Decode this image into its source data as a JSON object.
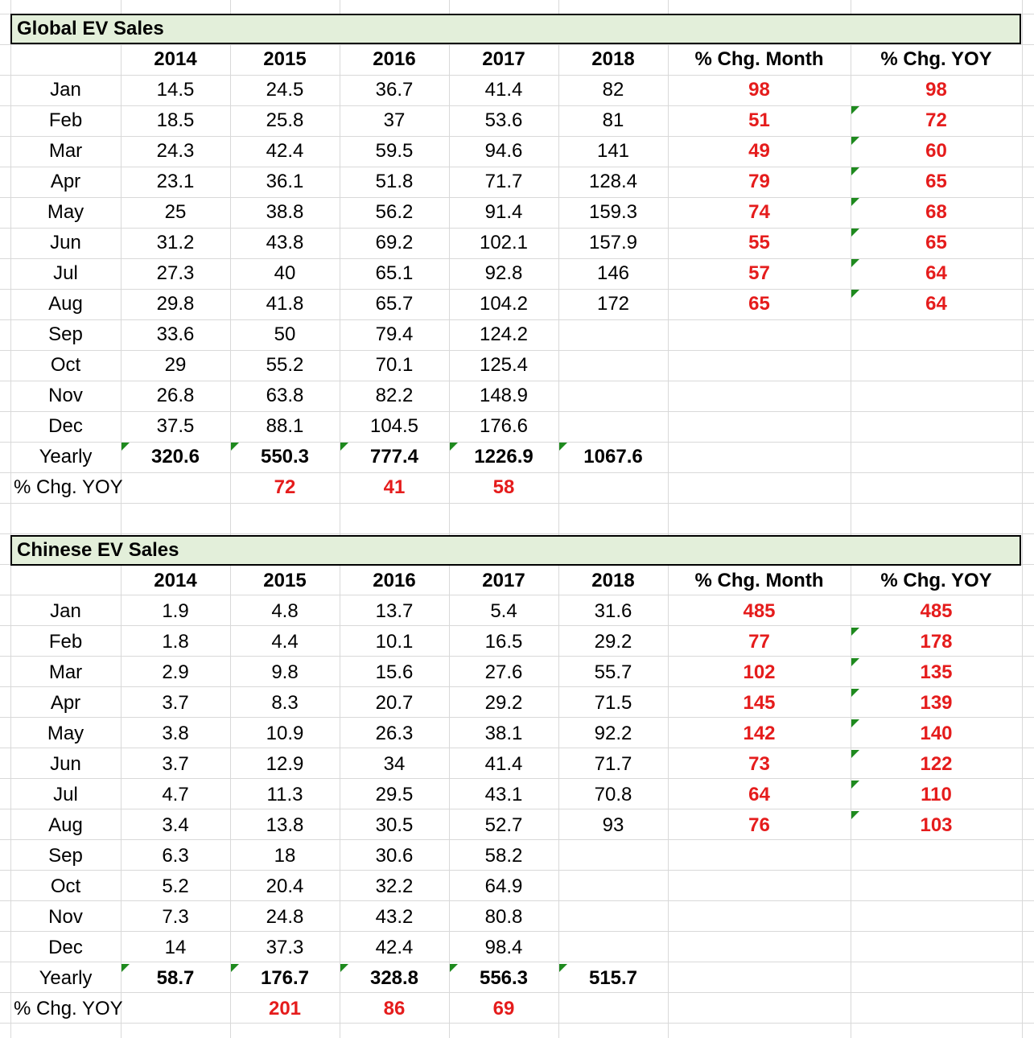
{
  "colors": {
    "header_fill": "#e3efda",
    "negative_red": "#e51c1c",
    "grid": "#d9d9d9",
    "flag_green": "#1e8a1e"
  },
  "tables": [
    {
      "title": "Global EV Sales",
      "headers": [
        "",
        "2014",
        "2015",
        "2016",
        "2017",
        "2018",
        "% Chg. Month",
        "% Chg. YOY"
      ],
      "rows": [
        [
          "Jan",
          "14.5",
          "24.5",
          "36.7",
          "41.4",
          "82",
          "98",
          "98"
        ],
        [
          "Feb",
          "18.5",
          "25.8",
          "37",
          "53.6",
          "81",
          "51",
          "72"
        ],
        [
          "Mar",
          "24.3",
          "42.4",
          "59.5",
          "94.6",
          "141",
          "49",
          "60"
        ],
        [
          "Apr",
          "23.1",
          "36.1",
          "51.8",
          "71.7",
          "128.4",
          "79",
          "65"
        ],
        [
          "May",
          "25",
          "38.8",
          "56.2",
          "91.4",
          "159.3",
          "74",
          "68"
        ],
        [
          "Jun",
          "31.2",
          "43.8",
          "69.2",
          "102.1",
          "157.9",
          "55",
          "65"
        ],
        [
          "Jul",
          "27.3",
          "40",
          "65.1",
          "92.8",
          "146",
          "57",
          "64"
        ],
        [
          "Aug",
          "29.8",
          "41.8",
          "65.7",
          "104.2",
          "172",
          "65",
          "64"
        ],
        [
          "Sep",
          "33.6",
          "50",
          "79.4",
          "124.2",
          "",
          "",
          ""
        ],
        [
          "Oct",
          "29",
          "55.2",
          "70.1",
          "125.4",
          "",
          "",
          ""
        ],
        [
          "Nov",
          "26.8",
          "63.8",
          "82.2",
          "148.9",
          "",
          "",
          ""
        ],
        [
          "Dec",
          "37.5",
          "88.1",
          "104.5",
          "176.6",
          "",
          "",
          ""
        ]
      ],
      "yearly": [
        "Yearly",
        "320.6",
        "550.3",
        "777.4",
        "1226.9",
        "1067.6"
      ],
      "yoy": [
        "% Chg. YOY",
        "",
        "72",
        "41",
        "58",
        ""
      ]
    },
    {
      "title": "Chinese EV Sales",
      "headers": [
        "",
        "2014",
        "2015",
        "2016",
        "2017",
        "2018",
        "% Chg. Month",
        "% Chg. YOY"
      ],
      "rows": [
        [
          "Jan",
          "1.9",
          "4.8",
          "13.7",
          "5.4",
          "31.6",
          "485",
          "485"
        ],
        [
          "Feb",
          "1.8",
          "4.4",
          "10.1",
          "16.5",
          "29.2",
          "77",
          "178"
        ],
        [
          "Mar",
          "2.9",
          "9.8",
          "15.6",
          "27.6",
          "55.7",
          "102",
          "135"
        ],
        [
          "Apr",
          "3.7",
          "8.3",
          "20.7",
          "29.2",
          "71.5",
          "145",
          "139"
        ],
        [
          "May",
          "3.8",
          "10.9",
          "26.3",
          "38.1",
          "92.2",
          "142",
          "140"
        ],
        [
          "Jun",
          "3.7",
          "12.9",
          "34",
          "41.4",
          "71.7",
          "73",
          "122"
        ],
        [
          "Jul",
          "4.7",
          "11.3",
          "29.5",
          "43.1",
          "70.8",
          "64",
          "110"
        ],
        [
          "Aug",
          "3.4",
          "13.8",
          "30.5",
          "52.7",
          "93",
          "76",
          "103"
        ],
        [
          "Sep",
          "6.3",
          "18",
          "30.6",
          "58.2",
          "",
          "",
          ""
        ],
        [
          "Oct",
          "5.2",
          "20.4",
          "32.2",
          "64.9",
          "",
          "",
          ""
        ],
        [
          "Nov",
          "7.3",
          "24.8",
          "43.2",
          "80.8",
          "",
          "",
          ""
        ],
        [
          "Dec",
          "14",
          "37.3",
          "42.4",
          "98.4",
          "",
          "",
          ""
        ]
      ],
      "yearly": [
        "Yearly",
        "58.7",
        "176.7",
        "328.8",
        "556.3",
        "515.7"
      ],
      "yoy": [
        "% Chg. YOY",
        "",
        "201",
        "86",
        "69",
        ""
      ]
    }
  ]
}
